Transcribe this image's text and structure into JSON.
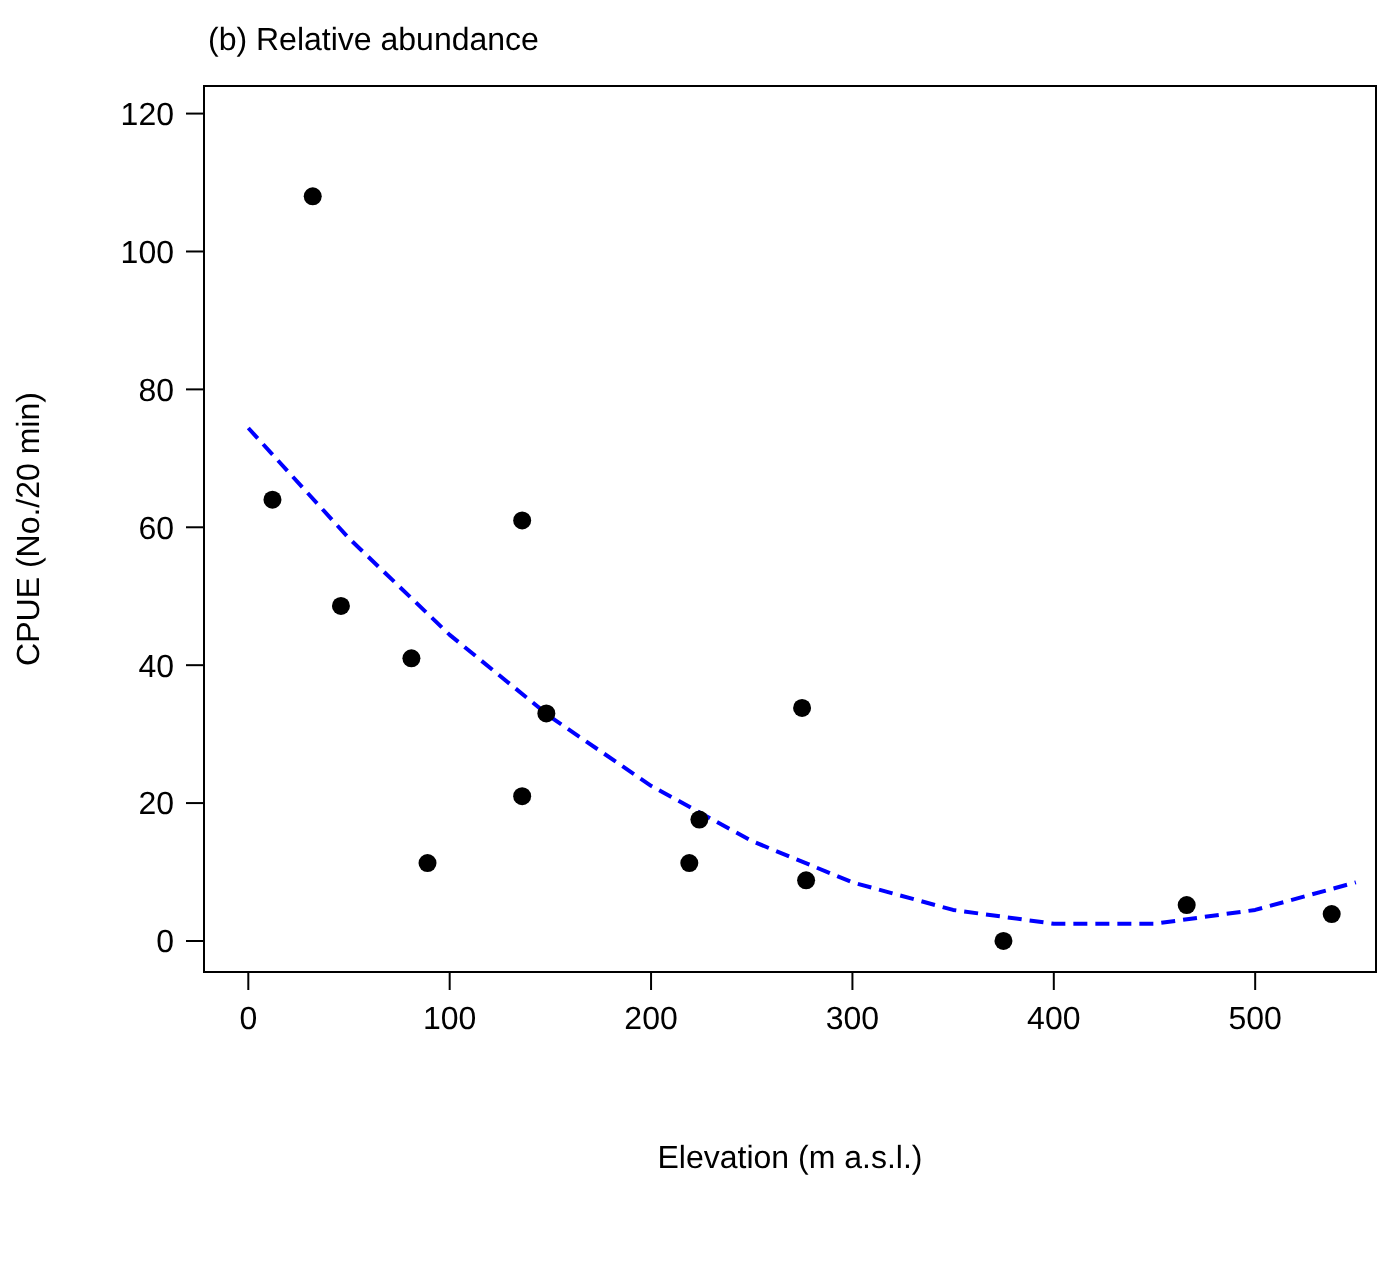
{
  "chart_data": {
    "type": "scatter",
    "title": "(b) Relative abundance",
    "xlabel": "Elevation (m a.s.l.)",
    "ylabel": "CPUE (No./20 min)",
    "xlim": [
      -22,
      560
    ],
    "xticks": [
      0,
      100,
      200,
      300,
      400,
      500
    ],
    "ylim": [
      -4.5,
      124
    ],
    "yticks": [
      0,
      20,
      40,
      60,
      80,
      100,
      120
    ],
    "grid": false,
    "legend": false,
    "series": [
      {
        "color": "#000000",
        "marker": "circle",
        "x": [
          12,
          32,
          46,
          81,
          89,
          136,
          136,
          148,
          219,
          224,
          275,
          277,
          375,
          466,
          538
        ],
        "values": [
          64,
          108,
          48.6,
          41,
          11.3,
          61,
          21,
          33,
          11.3,
          17.6,
          33.8,
          8.8,
          0,
          5.2,
          3.9
        ]
      },
      {
        "type": "line",
        "color": "#0000ff",
        "line_style": "dashed",
        "marker": "none",
        "x": [
          0,
          50,
          100,
          150,
          200,
          250,
          300,
          350,
          400,
          450,
          500,
          550
        ],
        "values": [
          74.4,
          58.4,
          44.4,
          32.5,
          22.5,
          14.5,
          8.5,
          4.5,
          2.5,
          2.5,
          4.5,
          8.5
        ]
      }
    ]
  }
}
